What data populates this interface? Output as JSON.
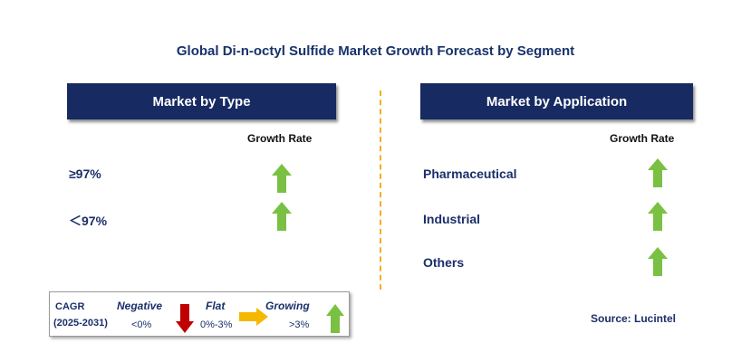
{
  "title": "Global Di-n-octyl Sulfide Market Growth Forecast by Segment",
  "left_panel": {
    "header": "Market by Type",
    "growth_rate_label": "Growth Rate",
    "rows": [
      {
        "label": "≥97%",
        "trend": "growing"
      },
      {
        "label": "＜97%",
        "trend": "growing"
      }
    ]
  },
  "right_panel": {
    "header": "Market by Application",
    "growth_rate_label": "Growth Rate",
    "rows": [
      {
        "label": "Pharmaceutical",
        "trend": "growing"
      },
      {
        "label": "Industrial",
        "trend": "growing"
      },
      {
        "label": "Others",
        "trend": "growing"
      }
    ]
  },
  "legend": {
    "cagr_label": "CAGR",
    "period": "(2025-2031)",
    "negative_label": "Negative",
    "negative_range": "<0%",
    "flat_label": "Flat",
    "flat_range": "0%-3%",
    "growing_label": "Growing",
    "growing_range": ">3%"
  },
  "source": "Source: Lucintel",
  "colors": {
    "header_bg": "#172a62",
    "growing_arrow": "#7ac143",
    "negative_arrow": "#c00000",
    "flat_arrow": "#f5b800",
    "divider": "#f2b01e"
  }
}
